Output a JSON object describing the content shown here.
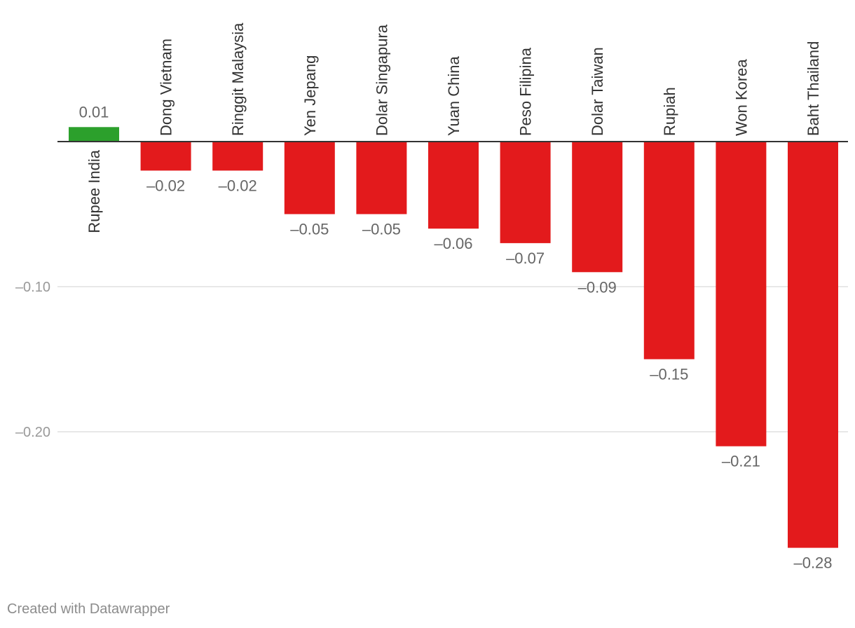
{
  "chart_data": {
    "type": "bar",
    "title": "",
    "xlabel": "",
    "ylabel": "",
    "categories": [
      "Rupee India",
      "Dong Vietnam",
      "Ringgit Malaysia",
      "Yen Jepang",
      "Dolar Singapura",
      "Yuan China",
      "Peso Filipina",
      "Dolar Taiwan",
      "Rupiah",
      "Won Korea",
      "Baht Thailand"
    ],
    "values": [
      0.01,
      -0.02,
      -0.02,
      -0.05,
      -0.05,
      -0.06,
      -0.07,
      -0.09,
      -0.15,
      -0.21,
      -0.28
    ],
    "value_labels": [
      "0.01",
      "–0.02",
      "–0.02",
      "–0.05",
      "–0.05",
      "–0.06",
      "–0.07",
      "–0.09",
      "–0.15",
      "–0.21",
      "–0.28"
    ],
    "ylim": [
      -0.28,
      0.01
    ],
    "yticks": [
      -0.1,
      -0.2
    ],
    "ytick_labels": [
      "–0.10",
      "–0.20"
    ],
    "grid": true,
    "colors": {
      "positive": "#2ca02c",
      "negative": "#e31a1c",
      "axis": "#333333",
      "grid": "#e0e0e0",
      "tick_text": "#999999",
      "label_text": "#666666",
      "category_text": "#333333"
    }
  },
  "footer": {
    "credit": "Created with Datawrapper"
  }
}
